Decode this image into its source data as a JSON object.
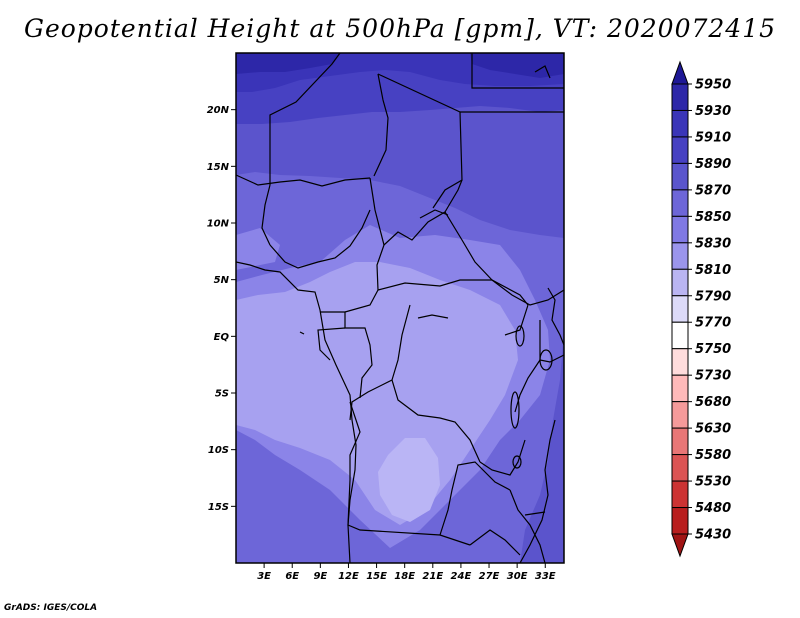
{
  "title": "Geopotential Height at 500hPa [gpm], VT: 2020072415",
  "footer": "GrADS: IGES/COLA",
  "map": {
    "lat_ticks": [
      "20N",
      "15N",
      "10N",
      "5N",
      "EQ",
      "5S",
      "10S",
      "15S"
    ],
    "lon_ticks": [
      "3E",
      "6E",
      "9E",
      "12E",
      "15E",
      "18E",
      "21E",
      "24E",
      "27E",
      "30E",
      "33E"
    ],
    "lon_range": [
      0,
      35
    ],
    "lat_range": [
      -20,
      25
    ]
  },
  "colorbar": {
    "labels": [
      "5950",
      "5930",
      "5910",
      "5890",
      "5870",
      "5850",
      "5830",
      "5810",
      "5790",
      "5770",
      "5750",
      "5730",
      "5680",
      "5630",
      "5580",
      "5530",
      "5480",
      "5430"
    ],
    "colors": [
      "#1e1896",
      "#2d27a8",
      "#3a35b8",
      "#4741c2",
      "#5a55cc",
      "#6d66d8",
      "#8079e4",
      "#9b95ec",
      "#bab5f2",
      "#dcdaf8",
      "#ffffff",
      "#ffdcdc",
      "#ffbaba",
      "#f59a9a",
      "#e87676",
      "#db5454",
      "#cc3333",
      "#b81e1e",
      "#a01414"
    ]
  }
}
